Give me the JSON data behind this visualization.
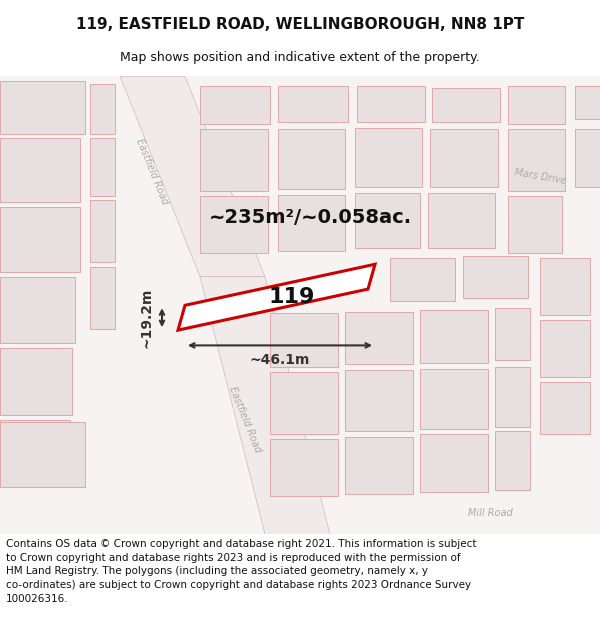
{
  "title": "119, EASTFIELD ROAD, WELLINGBOROUGH, NN8 1PT",
  "subtitle": "Map shows position and indicative extent of the property.",
  "footnote": "Contains OS data © Crown copyright and database right 2021. This information is subject\nto Crown copyright and database rights 2023 and is reproduced with the permission of\nHM Land Registry. The polygons (including the associated geometry, namely x, y\nco-ordinates) are subject to Crown copyright and database rights 2023 Ordnance Survey\n100026316.",
  "area_label": "~235m²/~0.058ac.",
  "width_label": "~46.1m",
  "height_label": "~19.2m",
  "plot_number": "119",
  "map_bg": "#f7f3f3",
  "road_fill": "#f0eaea",
  "road_edge": "#d4b8b8",
  "bld_fill": "#e8e0e0",
  "bld_edge": "#e0a8a8",
  "plot_edge_color": "#cc0000",
  "plot_fill": "#ffffff",
  "dim_color": "#333333",
  "road_label_color": "#aaaaaa",
  "title_fontsize": 11,
  "subtitle_fontsize": 9,
  "footnote_fontsize": 7.5,
  "area_fontsize": 14,
  "plot_label_fontsize": 16,
  "dim_fontsize": 10
}
